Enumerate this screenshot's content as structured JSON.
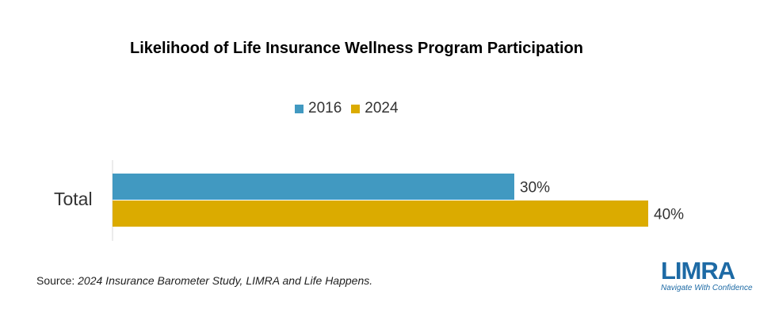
{
  "chart_data": {
    "type": "bar",
    "orientation": "horizontal",
    "title": "Likelihood of Life Insurance Wellness Program Participation",
    "categories": [
      "Total"
    ],
    "series": [
      {
        "name": "2016",
        "values": [
          30
        ],
        "labels": [
          "30%"
        ],
        "color": "#4199c1"
      },
      {
        "name": "2024",
        "values": [
          40
        ],
        "labels": [
          "40%"
        ],
        "color": "#dbab00"
      }
    ],
    "legend_position": "top",
    "grid": false
  },
  "source": {
    "prefix": "Source: ",
    "text": "2024 Insurance Barometer Study, LIMRA and Life Happens."
  },
  "logo": {
    "name": "LIMRA",
    "tagline": "Navigate With Confidence",
    "color": "#1d6aa5"
  }
}
